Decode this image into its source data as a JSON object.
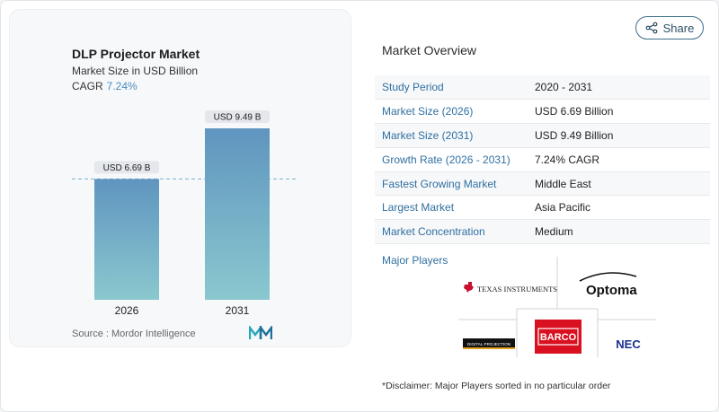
{
  "header": {
    "title": "DLP Projector Market",
    "subtitle": "Market Size in USD Billion",
    "cagr_label": "CAGR",
    "cagr_value": "7.24%"
  },
  "chart_data": {
    "type": "bar",
    "categories": [
      "2026",
      "2031"
    ],
    "values": [
      6.69,
      9.49
    ],
    "data_labels": [
      "USD 6.69 B",
      "USD 9.49 B"
    ],
    "title": "DLP Projector Market",
    "ylabel": "",
    "xlabel": "",
    "ylim": [
      0,
      9.49
    ],
    "grid": false,
    "reference_line_value": 6.69,
    "bar_gradient": [
      "#5f95bf",
      "#8ac8cf"
    ]
  },
  "source": "Source :  Mordor Intelligence",
  "share": {
    "label": "Share"
  },
  "overview": {
    "title": "Market Overview",
    "rows": [
      {
        "key": "Study Period",
        "value": "2020 - 2031"
      },
      {
        "key": "Market Size (2026)",
        "value": "USD 6.69 Billion"
      },
      {
        "key": "Market Size (2031)",
        "value": "USD 9.49 Billion"
      },
      {
        "key": "Growth Rate (2026 - 2031)",
        "value": "7.24% CAGR"
      },
      {
        "key": "Fastest Growing Market",
        "value": "Middle East"
      },
      {
        "key": "Largest Market",
        "value": "Asia Pacific"
      },
      {
        "key": "Market Concentration",
        "value": "Medium"
      }
    ]
  },
  "players": {
    "title": "Major Players",
    "logos": {
      "texas": "TEXAS INSTRUMENTS",
      "optoma": "Optoma",
      "digital": "DIGITAL PROJECTION",
      "barco": "BARCO",
      "nec": "NEC"
    }
  },
  "disclaimer": "*Disclaimer: Major Players sorted in no particular order",
  "colors": {
    "accent": "#2f6fa0",
    "barco": "#d8101f",
    "nec": "#1a2f8e"
  }
}
